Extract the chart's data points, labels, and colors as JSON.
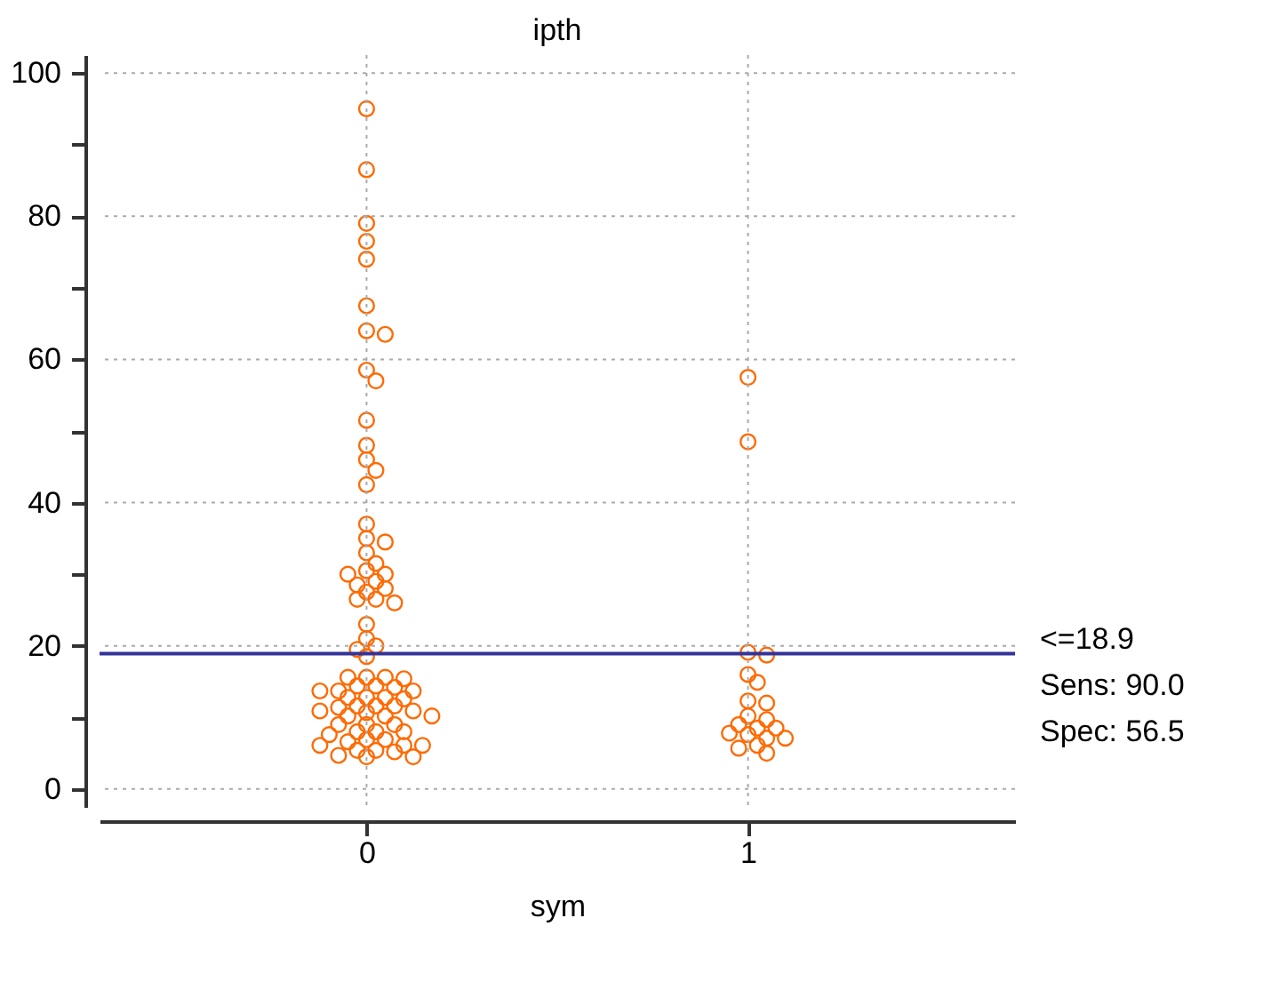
{
  "chart_data": {
    "type": "scatter",
    "title": "ipth",
    "xlabel": "sym",
    "categories": [
      "0",
      "1"
    ],
    "series": [
      {
        "color": "#ff6a00",
        "x": [
          "0",
          "0",
          "0",
          "0",
          "0",
          "0",
          "0",
          "0",
          "0",
          "0",
          "0",
          "0",
          "0",
          "0",
          "0",
          "0",
          "0",
          "0",
          "0",
          "0",
          "0",
          "0",
          "0",
          "0",
          "0",
          "0",
          "0",
          "0",
          "0",
          "0",
          "0",
          "0",
          "0",
          "0",
          "0",
          "0",
          "0",
          "0",
          "0",
          "0",
          "0",
          "0",
          "0",
          "0",
          "0",
          "0",
          "0",
          "0",
          "0",
          "0",
          "0",
          "0",
          "0",
          "0",
          "0",
          "0",
          "0",
          "0",
          "0",
          "0",
          "0",
          "0",
          "0",
          "0",
          "0",
          "0",
          "0",
          "0",
          "0",
          "0",
          "0",
          "0",
          "0",
          "0",
          "0",
          "0",
          "0",
          "0"
        ],
        "values": [
          95,
          86.5,
          79,
          76.5,
          74,
          67.5,
          64,
          63.5,
          58.5,
          57,
          51.5,
          48,
          46,
          44.5,
          42.5,
          37,
          35,
          34.5,
          33,
          31.5,
          30.5,
          30,
          30,
          29,
          28.5,
          28,
          27.5,
          26.5,
          26.5,
          26,
          23,
          21,
          20,
          19.5,
          18.5,
          15.6,
          15.6,
          15.6,
          15.4,
          14.4,
          14.4,
          14.2,
          13.7,
          13.7,
          13.7,
          12.8,
          12.8,
          12.8,
          12.6,
          11.6,
          11.6,
          11.6,
          11.4,
          10.9,
          10.9,
          10.7,
          10.2,
          10.2,
          10.2,
          9,
          9,
          9,
          8,
          8,
          8,
          7.6,
          6.9,
          6.9,
          6.6,
          6.1,
          6.1,
          6.1,
          5.4,
          5.4,
          5.2,
          4.5,
          4.5,
          4.7
        ]
      },
      {
        "color": "#ff6a00",
        "x": [
          "1",
          "1",
          "1",
          "1",
          "1",
          "1",
          "1",
          "1",
          "1",
          "1",
          "1",
          "1",
          "1",
          "1",
          "1",
          "1",
          "1",
          "1",
          "1",
          "1"
        ],
        "values": [
          57.5,
          48.5,
          19.1,
          18.7,
          16,
          14.9,
          12.3,
          12,
          10.2,
          9.7,
          9,
          8.5,
          8.5,
          7.8,
          7.6,
          7.1,
          7.1,
          6.1,
          5.7,
          5
        ]
      }
    ],
    "ylim": [
      -2.5,
      102.5
    ],
    "yticks": [
      0,
      {
        "value": 10,
        "label": null
      },
      20,
      {
        "value": 30,
        "label": null
      },
      40,
      {
        "value": 50,
        "label": null
      },
      60,
      {
        "value": 70,
        "label": null
      },
      80,
      {
        "value": 90,
        "label": null
      },
      100
    ],
    "grid": true,
    "marker": "circle",
    "ref_lines": [
      {
        "axis": "y",
        "value": 18.9,
        "label": "<=18.9",
        "color": "#333399"
      }
    ],
    "annotations": [
      "Sens: 90.0",
      "Spec: 56.5"
    ]
  }
}
